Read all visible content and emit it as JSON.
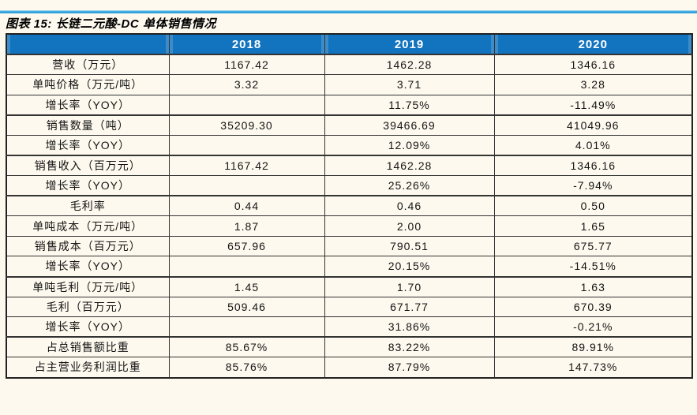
{
  "colors": {
    "page_background": "#FDF9EE",
    "cell_fill": "#FDF9EE",
    "header_fill": "#1273BF",
    "header_text": "#FFFFFF",
    "border_color": "#333333",
    "accent_rule": "#35A4DC"
  },
  "chart_data": {
    "type": "table",
    "title": "图表 15: 长链二元酸-DC 单体销售情况",
    "columns": [
      "",
      "2018",
      "2019",
      "2020"
    ],
    "rows": [
      {
        "label": "营收（万元）",
        "group_start": true,
        "values": [
          "1167.42",
          "1462.28",
          "1346.16"
        ]
      },
      {
        "label": "单吨价格（万元/吨）",
        "group_start": false,
        "values": [
          "3.32",
          "3.71",
          "3.28"
        ]
      },
      {
        "label": "增长率（YOY）",
        "group_start": false,
        "values": [
          "",
          "11.75%",
          "-11.49%"
        ]
      },
      {
        "label": "销售数量（吨）",
        "group_start": true,
        "values": [
          "35209.30",
          "39466.69",
          "41049.96"
        ]
      },
      {
        "label": "增长率（YOY）",
        "group_start": false,
        "values": [
          "",
          "12.09%",
          "4.01%"
        ]
      },
      {
        "label": "销售收入（百万元）",
        "group_start": true,
        "values": [
          "1167.42",
          "1462.28",
          "1346.16"
        ]
      },
      {
        "label": "增长率（YOY）",
        "group_start": false,
        "values": [
          "",
          "25.26%",
          "-7.94%"
        ]
      },
      {
        "label": "毛利率",
        "group_start": true,
        "values": [
          "0.44",
          "0.46",
          "0.50"
        ]
      },
      {
        "label": "单吨成本（万元/吨）",
        "group_start": false,
        "values": [
          "1.87",
          "2.00",
          "1.65"
        ]
      },
      {
        "label": "销售成本（百万元）",
        "group_start": false,
        "values": [
          "657.96",
          "790.51",
          "675.77"
        ]
      },
      {
        "label": "增长率（YOY）",
        "group_start": false,
        "values": [
          "",
          "20.15%",
          "-14.51%"
        ]
      },
      {
        "label": "单吨毛利（万元/吨）",
        "group_start": true,
        "values": [
          "1.45",
          "1.70",
          "1.63"
        ]
      },
      {
        "label": "毛利（百万元）",
        "group_start": false,
        "values": [
          "509.46",
          "671.77",
          "670.39"
        ]
      },
      {
        "label": "增长率（YOY）",
        "group_start": false,
        "values": [
          "",
          "31.86%",
          "-0.21%"
        ]
      },
      {
        "label": "占总销售额比重",
        "group_start": true,
        "values": [
          "85.67%",
          "83.22%",
          "89.91%"
        ]
      },
      {
        "label": "占主营业务利润比重",
        "group_start": false,
        "values": [
          "85.76%",
          "87.79%",
          "147.73%"
        ]
      }
    ]
  }
}
